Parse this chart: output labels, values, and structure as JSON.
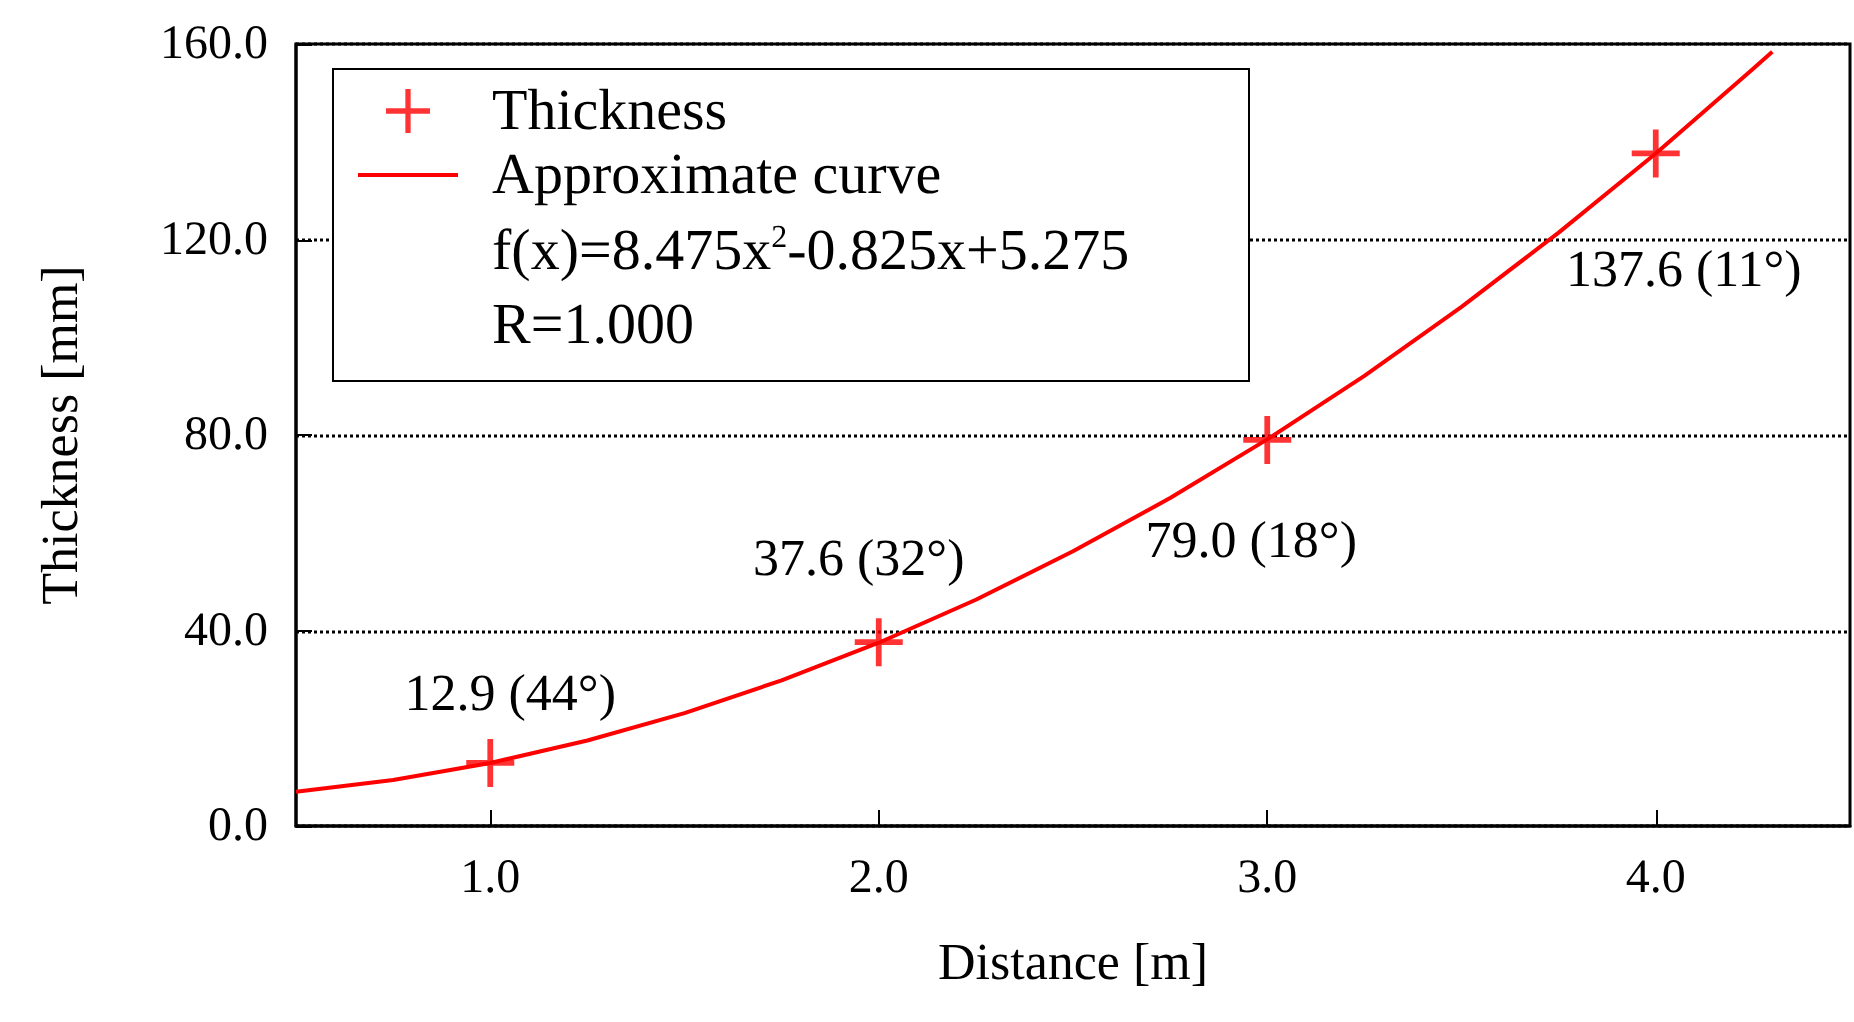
{
  "chart_data": {
    "type": "scatter",
    "xlabel": "Distance [m]",
    "ylabel": "Thickness [mm]",
    "xlim": [
      0.5,
      4.5
    ],
    "xticks": [
      {
        "value": 1,
        "label": "1.0"
      },
      {
        "value": 2,
        "label": "2.0"
      },
      {
        "value": 3,
        "label": "3.0"
      },
      {
        "value": 4,
        "label": "4.0"
      }
    ],
    "ylim": [
      0,
      160
    ],
    "yticks": [
      {
        "value": 0,
        "label": "0.0"
      },
      {
        "value": 40,
        "label": "40.0"
      },
      {
        "value": 80,
        "label": "80.0"
      },
      {
        "value": 120,
        "label": "120.0"
      },
      {
        "value": 160,
        "label": "160.0"
      }
    ],
    "grid": "y",
    "marker": "cross",
    "legend": "top left",
    "series": [
      {
        "name": "Thickness",
        "color": "#ff0000",
        "x": [
          1,
          2,
          3,
          4
        ],
        "values": [
          12.9,
          37.6,
          79.0,
          137.6
        ]
      },
      {
        "name": "Approximate curve",
        "type": "line",
        "marker": "none",
        "line_style": "solid",
        "color": "#ff0000",
        "x": [
          0.5,
          0.75,
          1,
          1.25,
          1.5,
          1.75,
          2,
          2.25,
          2.5,
          2.75,
          3,
          3.25,
          3.5,
          3.75,
          4,
          4.25,
          4.3
        ],
        "values": [
          7.0,
          9.4,
          12.9,
          17.5,
          23.1,
          29.8,
          37.5,
          46.3,
          56.2,
          67.1,
          79.1,
          92.1,
          106.2,
          121.4,
          137.6,
          154.9,
          158.4
        ]
      }
    ],
    "annotations": [
      "f(x)=8.475x$^{2}$-0.825x+5.275",
      "R=1.000",
      {
        "text": "12.9 (44°)",
        "x": 1,
        "y": 12.9
      },
      {
        "text": "37.6 (32°)",
        "x": 2,
        "y": 37.6
      },
      {
        "text": "79.0 (18°)",
        "x": 3,
        "y": 79.0
      },
      {
        "text": "137.6 (11°)",
        "x": 4,
        "y": 137.6
      }
    ]
  }
}
